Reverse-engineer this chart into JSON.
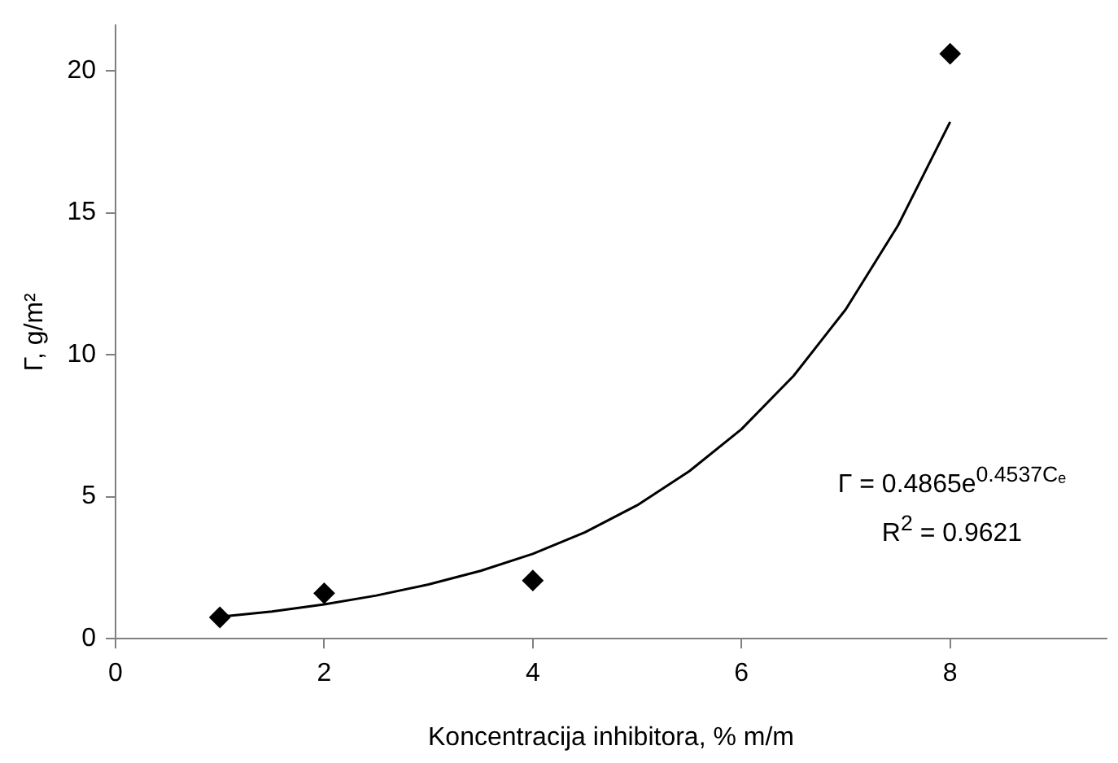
{
  "chart_data": {
    "type": "scatter",
    "xlabel": "Koncentracija inhibitora, % m/m",
    "ylabel": "Γ, g/m²",
    "xlim": [
      0,
      9.5
    ],
    "xticks": [
      0,
      2,
      4,
      6,
      8
    ],
    "ylim": [
      0,
      21.6
    ],
    "yticks": [
      0,
      5,
      10,
      15,
      20
    ],
    "grid": false,
    "legend": false,
    "series": [
      {
        "color": "#000000",
        "marker": "diamond",
        "x": [
          1,
          2,
          4,
          8
        ],
        "values": [
          0.75,
          1.6,
          2.05,
          20.6
        ]
      },
      {
        "type": "line",
        "color": "#000000",
        "marker": "none",
        "line_style": "solid",
        "x": [
          1,
          1.5,
          2,
          2.5,
          3,
          3.5,
          4,
          4.5,
          5,
          5.5,
          6,
          6.5,
          7,
          7.5,
          8
        ],
        "values": [
          0.77,
          0.96,
          1.21,
          1.52,
          1.91,
          2.39,
          2.99,
          3.75,
          4.7,
          5.9,
          7.38,
          9.26,
          11.6,
          14.55,
          18.2
        ]
      }
    ],
    "annotations": [
      "Γ = 0.4865e$^{0.4537Cₑ}$",
      "R$^{2}$ = 0.9621"
    ]
  }
}
